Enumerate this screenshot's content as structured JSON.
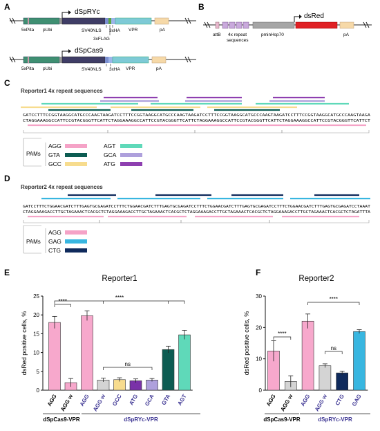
{
  "panels": {
    "A": {
      "label": "A",
      "c1": {
        "promoter": "dSpRYc",
        "parts": [
          "5xPita",
          "pUbi",
          "SV40NLS",
          "3xHA",
          "VPR",
          "pA",
          "3xFLAG"
        ]
      },
      "c2": {
        "promoter": "dSpCas9",
        "parts": [
          "5xPita",
          "pUbi",
          "SV40NLS",
          "3xHA",
          "VPR",
          "pA"
        ]
      }
    },
    "B": {
      "label": "B",
      "gene": "dsRed",
      "attb": "attB",
      "repeat1": "4x repeat",
      "repeat2": "sequences",
      "pmin": "pminHsp70",
      "pa": "pA"
    },
    "C": {
      "label": "C",
      "title": "Reporter1 4x repeat sequences",
      "seq_top": "GATCCTTTCCGGTAAGGCATGCCCAAGTAAGATCCTTTCCGGTAAGGCATGCCCAAGTAAGATCCTTTCCGGTAAGGCATGCCCAAGTAAGATCCTTTCCGGTAAGGCATGCCCAAGTAAGA",
      "seq_bot": "CTAGGAAAGGCCATTCCGTACGGGTTCATTCTAGGAAAGGCCATTCCGTACGGGTTCATTCTAGGAAAGGCCATTCCGTACGGGTTCATTCTAGGAAAGGCCATTCCGTACGGGTTCATTCT",
      "pams_label": "PAMs",
      "pams": [
        {
          "name": "AGG",
          "color": "#f5a3c7"
        },
        {
          "name": "GTA",
          "color": "#0d5c52"
        },
        {
          "name": "GCC",
          "color": "#f7dc8e"
        },
        {
          "name": "AGT",
          "color": "#5fd9b9"
        },
        {
          "name": "GCA",
          "color": "#aea0dc"
        },
        {
          "name": "ATG",
          "color": "#8e3fb0"
        }
      ]
    },
    "D": {
      "label": "D",
      "title": "Reporter2 4x repeat sequences",
      "seq_top": "GATCCTTTCTGGAACGATCTTTGAGTGCGAGATCCTTTCTGGAACGATCTTTGAGTGCGAGATCCTTTCTGGAACGATCTTTGAGTGCGAGATCCTTTCTGGAACGATCTTTGAGTGCGAGATCCTAAAT",
      "seq_bot": "CTAGGAAAGACCTTGCTAGAAACTCACGCTCTAGGAAAGACCTTGCTAGAAACTCACGCTCTAGGAAAGACCTTGCTAGAAACTCACGCTCTAGGAAAGACCTTGCTAGAAACTCACGCTCTAGATTTA",
      "pams_label": "PAMs",
      "pams": [
        {
          "name": "AGG",
          "color": "#f5a3c7"
        },
        {
          "name": "GAG",
          "color": "#38b6e0"
        },
        {
          "name": "CTG",
          "color": "#0f2a5c"
        }
      ]
    }
  },
  "chart_data": [
    {
      "panel": "E",
      "type": "bar",
      "title": "Reporter1",
      "ylabel": "dsRed positive cells, %",
      "ylim": [
        0,
        25
      ],
      "yticks": [
        0,
        5,
        10,
        15,
        20,
        25
      ],
      "categories": [
        "AGG",
        "AGG w",
        "AGG",
        "AGG w",
        "GCC",
        "ATG",
        "GCA",
        "GTA",
        "AGT"
      ],
      "values": [
        18,
        2,
        19.8,
        2.7,
        2.8,
        2.5,
        2.7,
        10.8,
        14.7
      ],
      "errors": [
        1.6,
        1.1,
        1.3,
        0.5,
        0.5,
        0.5,
        0.4,
        0.9,
        1.2
      ],
      "colors": [
        "#f7a8cc",
        "#f7a8cc",
        "#f7a8cc",
        "#d4d4d4",
        "#f7dc8e",
        "#7a32a8",
        "#aea0dc",
        "#0d5c52",
        "#5fd9b9"
      ],
      "label_colors": [
        "#000000",
        "#000000",
        "#3b3392",
        "#3b3392",
        "#3b3392",
        "#3b3392",
        "#3b3392",
        "#3b3392",
        "#3b3392"
      ],
      "groups": [
        "dSpCas9-VPR",
        "dSpRYc-VPR"
      ],
      "significance": [
        "****",
        "****",
        "ns"
      ]
    },
    {
      "panel": "F",
      "type": "bar",
      "title": "Reporter2",
      "ylabel": "dsRed positive cells, %",
      "ylim": [
        0,
        30
      ],
      "yticks": [
        0,
        10,
        20,
        30
      ],
      "categories": [
        "AGG",
        "AGG w",
        "AGG",
        "AGG w",
        "CTG",
        "GAG"
      ],
      "values": [
        12.5,
        2.8,
        22,
        7.8,
        5.5,
        18.7
      ],
      "errors": [
        3.3,
        1.8,
        2.3,
        0.6,
        0.6,
        0.6
      ],
      "colors": [
        "#f7a8cc",
        "#d4d4d4",
        "#f7a8cc",
        "#d4d4d4",
        "#0f2a5c",
        "#38b6e0"
      ],
      "label_colors": [
        "#000000",
        "#000000",
        "#3b3392",
        "#3b3392",
        "#3b3392",
        "#3b3392"
      ],
      "groups": [
        "dSpCas9-VPR",
        "dSpRYc-VPR"
      ],
      "significance": [
        "****",
        "****",
        "ns"
      ]
    }
  ]
}
